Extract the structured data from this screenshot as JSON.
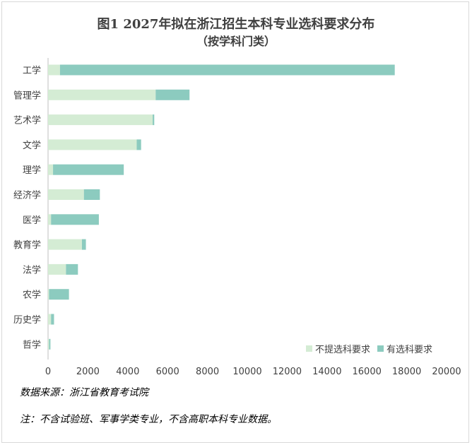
{
  "chart_data": {
    "type": "bar",
    "orientation": "horizontal",
    "stacked": true,
    "title": "图1 2027年拟在浙江招生本科专业选科要求分布",
    "subtitle": "（按学科门类）",
    "categories": [
      "工学",
      "管理学",
      "艺术学",
      "文学",
      "理学",
      "经济学",
      "医学",
      "教育学",
      "法学",
      "农学",
      "历史学",
      "哲学"
    ],
    "series": [
      {
        "name": "不提选科要求",
        "color": "#d4ecd4",
        "values": [
          600,
          5400,
          5250,
          4450,
          250,
          1800,
          150,
          1700,
          900,
          50,
          150,
          50
        ]
      },
      {
        "name": "有选科要求",
        "color": "#8ccbbf",
        "values": [
          16800,
          1700,
          80,
          220,
          3550,
          800,
          2400,
          200,
          600,
          1000,
          150,
          70
        ]
      }
    ],
    "xlim": [
      0,
      20000
    ],
    "xticks": [
      "0",
      "2000",
      "4000",
      "6000",
      "8000",
      "10000",
      "12000",
      "14000",
      "16000",
      "18000",
      "20000"
    ],
    "grid": false,
    "legend_position": "bottom-right"
  },
  "notes": {
    "source": "数据来源：浙江省教育考试院",
    "footnote": "注：不含试验班、军事学类专业，不含高职本科专业数据。"
  }
}
